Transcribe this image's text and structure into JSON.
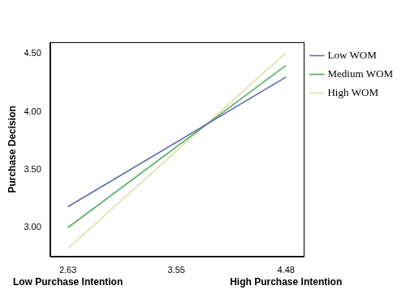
{
  "chart_data": {
    "type": "line",
    "y_label": "Purchase Decision",
    "x": [
      2.63,
      4.48
    ],
    "series": [
      {
        "name": "Low WOM",
        "color": "#5a68b0",
        "values": [
          3.18,
          4.3
        ]
      },
      {
        "name": "Medium WOM",
        "color": "#3fa851",
        "values": [
          3.0,
          4.4
        ]
      },
      {
        "name": "High WOM",
        "color": "#e0dfa2",
        "values": [
          2.82,
          4.51
        ]
      }
    ],
    "xlim": [
      2.48,
      4.63
    ],
    "xticks": [
      2.63,
      3.55,
      4.48
    ],
    "ylim": [
      2.75,
      4.6
    ],
    "yticks": [
      {
        "value": 3,
        "label": "3.00"
      },
      {
        "value": 3.5,
        "label": "3.50"
      },
      {
        "value": 4,
        "label": "4.00"
      },
      {
        "value": 4.5,
        "label": "4.50"
      }
    ],
    "annotations": [
      {
        "text": "Low Purchase Intention",
        "x": 2.63
      },
      {
        "text": "High Purchase Intention",
        "x": 4.48
      }
    ],
    "marker": "none",
    "grid": false,
    "legend": "upper right"
  }
}
